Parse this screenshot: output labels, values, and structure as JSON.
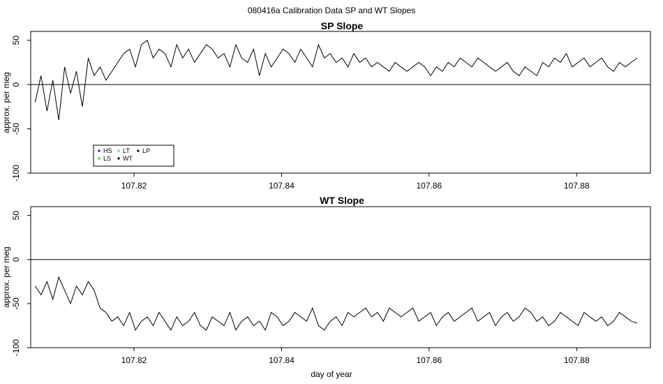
{
  "figure": {
    "title": "080416a   Calibration Data SP and WT Slopes",
    "xlabel": "day of year",
    "ylabel": "approx. per meg"
  },
  "legend": {
    "position": "bottom-left of top panel",
    "entries": [
      {
        "label": "HS",
        "color": "#1a1a8c"
      },
      {
        "label": "LS",
        "color": "#22cc22"
      },
      {
        "label": "LT",
        "color": "#55cccc"
      },
      {
        "label": "WT",
        "color": "#000000"
      },
      {
        "label": "LP",
        "color": "#000000"
      }
    ]
  },
  "chart_data": [
    {
      "type": "line",
      "title": "SP Slope",
      "xlabel": "",
      "ylabel": "approx. per meg",
      "xlim": [
        107.806,
        107.89
      ],
      "ylim": [
        -100,
        60
      ],
      "xticks": [
        107.82,
        107.84,
        107.86,
        107.88
      ],
      "xtick_labels": [
        "107.82",
        "107.84",
        "107.86",
        "107.88"
      ],
      "yticks": [
        -100,
        -50,
        0,
        50
      ],
      "ytick_labels": [
        "-100",
        "-50",
        "0",
        "50"
      ],
      "hline": 0,
      "series": [
        {
          "name": "WT",
          "color": "#000000",
          "x": [
            107.8066,
            107.8074,
            107.8082,
            107.809,
            107.8098,
            107.8106,
            107.8114,
            107.8122,
            107.813,
            107.8138,
            107.8146,
            107.8154,
            107.8162,
            107.817,
            107.8178,
            107.8186,
            107.8194,
            107.8202,
            107.821,
            107.8218,
            107.8226,
            107.8234,
            107.8242,
            107.825,
            107.8258,
            107.8266,
            107.8274,
            107.8282,
            107.829,
            107.8298,
            107.8306,
            107.8314,
            107.8322,
            107.833,
            107.8338,
            107.8346,
            107.8354,
            107.8362,
            107.837,
            107.8378,
            107.8386,
            107.8394,
            107.8402,
            107.841,
            107.8418,
            107.8426,
            107.8434,
            107.8442,
            107.845,
            107.8458,
            107.8466,
            107.8474,
            107.8482,
            107.849,
            107.8498,
            107.8506,
            107.8514,
            107.8522,
            107.853,
            107.8538,
            107.8546,
            107.8554,
            107.8562,
            107.857,
            107.8578,
            107.8586,
            107.8594,
            107.8602,
            107.861,
            107.8618,
            107.8626,
            107.8634,
            107.8642,
            107.865,
            107.8658,
            107.8666,
            107.8674,
            107.8682,
            107.869,
            107.8698,
            107.8706,
            107.8714,
            107.8722,
            107.873,
            107.8738,
            107.8746,
            107.8754,
            107.8762,
            107.877,
            107.8778,
            107.8786,
            107.8794,
            107.8802,
            107.881,
            107.8818,
            107.8826,
            107.8834,
            107.8842,
            107.885,
            107.8858,
            107.8866,
            107.8874,
            107.8882
          ],
          "y": [
            -20,
            10,
            -30,
            5,
            -40,
            20,
            -10,
            15,
            -25,
            30,
            10,
            20,
            5,
            15,
            25,
            35,
            40,
            20,
            45,
            50,
            30,
            40,
            35,
            20,
            45,
            30,
            40,
            25,
            35,
            45,
            40,
            30,
            35,
            20,
            45,
            30,
            25,
            40,
            10,
            35,
            20,
            30,
            40,
            35,
            25,
            40,
            30,
            20,
            45,
            30,
            35,
            25,
            30,
            20,
            35,
            25,
            30,
            20,
            25,
            20,
            15,
            25,
            20,
            15,
            20,
            25,
            20,
            10,
            20,
            15,
            25,
            20,
            30,
            25,
            20,
            30,
            25,
            20,
            15,
            20,
            25,
            15,
            10,
            20,
            15,
            10,
            25,
            20,
            30,
            25,
            35,
            20,
            25,
            30,
            20,
            25,
            30,
            20,
            15,
            25,
            20,
            25,
            30
          ]
        }
      ]
    },
    {
      "type": "line",
      "title": "WT Slope",
      "xlabel": "day of year",
      "ylabel": "approx. per meg",
      "xlim": [
        107.806,
        107.89
      ],
      "ylim": [
        -100,
        60
      ],
      "xticks": [
        107.82,
        107.84,
        107.86,
        107.88
      ],
      "xtick_labels": [
        "107.82",
        "107.84",
        "107.86",
        "107.88"
      ],
      "yticks": [
        -100,
        -50,
        0,
        50
      ],
      "ytick_labels": [
        "-100",
        "-50",
        "0",
        "50"
      ],
      "hline": 0,
      "series": [
        {
          "name": "WT",
          "color": "#000000",
          "x": [
            107.8066,
            107.8074,
            107.8082,
            107.809,
            107.8098,
            107.8106,
            107.8114,
            107.8122,
            107.813,
            107.8138,
            107.8146,
            107.8154,
            107.8162,
            107.817,
            107.8178,
            107.8186,
            107.8194,
            107.8202,
            107.821,
            107.8218,
            107.8226,
            107.8234,
            107.8242,
            107.825,
            107.8258,
            107.8266,
            107.8274,
            107.8282,
            107.829,
            107.8298,
            107.8306,
            107.8314,
            107.8322,
            107.833,
            107.8338,
            107.8346,
            107.8354,
            107.8362,
            107.837,
            107.8378,
            107.8386,
            107.8394,
            107.8402,
            107.841,
            107.8418,
            107.8426,
            107.8434,
            107.8442,
            107.845,
            107.8458,
            107.8466,
            107.8474,
            107.8482,
            107.849,
            107.8498,
            107.8506,
            107.8514,
            107.8522,
            107.853,
            107.8538,
            107.8546,
            107.8554,
            107.8562,
            107.857,
            107.8578,
            107.8586,
            107.8594,
            107.8602,
            107.861,
            107.8618,
            107.8626,
            107.8634,
            107.8642,
            107.865,
            107.8658,
            107.8666,
            107.8674,
            107.8682,
            107.869,
            107.8698,
            107.8706,
            107.8714,
            107.8722,
            107.873,
            107.8738,
            107.8746,
            107.8754,
            107.8762,
            107.877,
            107.8778,
            107.8786,
            107.8794,
            107.8802,
            107.881,
            107.8818,
            107.8826,
            107.8834,
            107.8842,
            107.885,
            107.8858,
            107.8866,
            107.8874,
            107.8882
          ],
          "y": [
            -30,
            -40,
            -25,
            -45,
            -20,
            -35,
            -50,
            -30,
            -40,
            -25,
            -35,
            -55,
            -60,
            -70,
            -65,
            -75,
            -60,
            -80,
            -70,
            -65,
            -75,
            -60,
            -70,
            -80,
            -65,
            -75,
            -70,
            -60,
            -75,
            -80,
            -65,
            -70,
            -75,
            -60,
            -80,
            -70,
            -65,
            -75,
            -70,
            -80,
            -60,
            -65,
            -75,
            -70,
            -60,
            -65,
            -70,
            -55,
            -75,
            -80,
            -70,
            -65,
            -75,
            -60,
            -65,
            -60,
            -55,
            -65,
            -60,
            -70,
            -55,
            -60,
            -65,
            -60,
            -55,
            -70,
            -65,
            -60,
            -75,
            -65,
            -60,
            -70,
            -65,
            -60,
            -55,
            -70,
            -65,
            -60,
            -75,
            -65,
            -60,
            -70,
            -65,
            -55,
            -60,
            -70,
            -65,
            -75,
            -70,
            -60,
            -65,
            -70,
            -75,
            -60,
            -65,
            -70,
            -65,
            -75,
            -70,
            -60,
            -65,
            -70,
            -72
          ]
        }
      ]
    }
  ]
}
